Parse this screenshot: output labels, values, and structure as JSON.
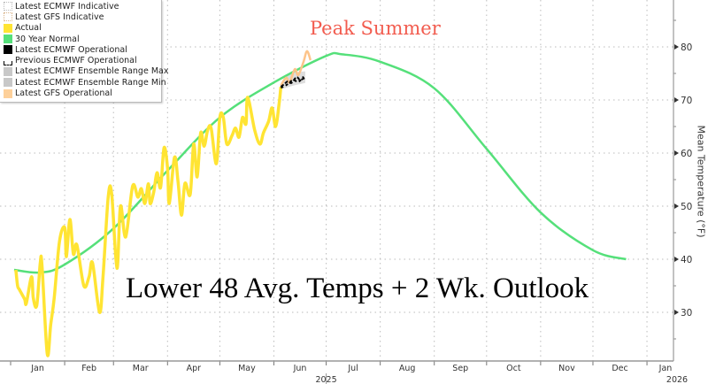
{
  "chart_data": {
    "type": "line",
    "title": "",
    "annotations": [
      "Peak Summer",
      "Lower 48 Avg. Temps + 2 Wk. Outlook"
    ],
    "xlabel": "",
    "ylabel": "Mean Temperature (°F)",
    "xlim": [
      "2025-01-01",
      "2026-01-15"
    ],
    "ylim": [
      20,
      90
    ],
    "yticks": [
      30,
      40,
      50,
      60,
      70,
      80
    ],
    "xtick_labels": [
      "Jan",
      "Feb",
      "Mar",
      "Apr",
      "May",
      "Jun",
      "Jul",
      "Aug",
      "Sep",
      "Oct",
      "Nov",
      "Dec",
      "Jan"
    ],
    "year_labels": [
      "2025",
      "2026"
    ],
    "grid": true,
    "legend_position": "top-left",
    "legend": [
      {
        "name": "Latest ECMWF Indicative",
        "color": "#d8d8d8",
        "style": "dotted"
      },
      {
        "name": "Latest GFS Indicative",
        "color": "#e6c9a6",
        "style": "dotted"
      },
      {
        "name": "Actual",
        "color": "#ffe433"
      },
      {
        "name": "30 Year Normal",
        "color": "#55e07a"
      },
      {
        "name": "Latest ECMWF Operational",
        "color": "#000000"
      },
      {
        "name": "Previous ECMWF Operational",
        "color": "#000000",
        "style": "dashed"
      },
      {
        "name": "Latest ECMWF Ensemble Range Max",
        "color": "#c8c8c8"
      },
      {
        "name": "Latest ECMWF Ensemble Range Min",
        "color": "#c8c8c8"
      },
      {
        "name": "Latest GFS Operational",
        "color": "#fdd09a"
      }
    ],
    "series": [
      {
        "name": "Actual",
        "color": "#ffe433",
        "points": [
          [
            "2025-01-04",
            38.0
          ],
          [
            "2025-01-05",
            35.0
          ],
          [
            "2025-01-06",
            34.3
          ],
          [
            "2025-01-09",
            32.5
          ],
          [
            "2025-01-10",
            31.7
          ],
          [
            "2025-01-13",
            36.7
          ],
          [
            "2025-01-14",
            32.7
          ],
          [
            "2025-01-16",
            31.3
          ],
          [
            "2025-01-18",
            39.3
          ],
          [
            "2025-01-19",
            38.8
          ],
          [
            "2025-01-22",
            22.2
          ],
          [
            "2025-01-24",
            27.7
          ],
          [
            "2025-01-26",
            32.7
          ],
          [
            "2025-01-29",
            43.3
          ],
          [
            "2025-02-01",
            46.0
          ],
          [
            "2025-02-02",
            40.5
          ],
          [
            "2025-02-04",
            47.5
          ],
          [
            "2025-02-06",
            41.0
          ],
          [
            "2025-02-08",
            42.7
          ],
          [
            "2025-02-12",
            35.0
          ],
          [
            "2025-02-15",
            36.7
          ],
          [
            "2025-02-17",
            39.3
          ],
          [
            "2025-02-21",
            30.0
          ],
          [
            "2025-02-23",
            36.7
          ],
          [
            "2025-02-26",
            51.8
          ],
          [
            "2025-02-28",
            52.2
          ],
          [
            "2025-03-03",
            38.3
          ],
          [
            "2025-03-05",
            50.0
          ],
          [
            "2025-03-08",
            44.2
          ],
          [
            "2025-03-12",
            53.8
          ],
          [
            "2025-03-15",
            51.7
          ],
          [
            "2025-03-17",
            53.3
          ],
          [
            "2025-03-19",
            50.5
          ],
          [
            "2025-03-21",
            54.2
          ],
          [
            "2025-03-22",
            50.5
          ],
          [
            "2025-03-24",
            52.5
          ],
          [
            "2025-03-26",
            56.3
          ],
          [
            "2025-03-28",
            53.5
          ],
          [
            "2025-03-30",
            61.0
          ],
          [
            "2025-04-01",
            57.2
          ],
          [
            "2025-04-02",
            50.5
          ],
          [
            "2025-04-05",
            59.2
          ],
          [
            "2025-04-07",
            54.7
          ],
          [
            "2025-04-09",
            48.3
          ],
          [
            "2025-04-11",
            54.3
          ],
          [
            "2025-04-14",
            52.2
          ],
          [
            "2025-04-16",
            61.7
          ],
          [
            "2025-04-18",
            55.5
          ],
          [
            "2025-04-20",
            63.8
          ],
          [
            "2025-04-22",
            61.3
          ],
          [
            "2025-04-24",
            64.3
          ],
          [
            "2025-04-26",
            64.7
          ],
          [
            "2025-04-29",
            58.0
          ],
          [
            "2025-05-01",
            66.7
          ],
          [
            "2025-05-03",
            66.7
          ],
          [
            "2025-05-05",
            61.7
          ],
          [
            "2025-05-08",
            63.3
          ],
          [
            "2025-05-10",
            64.7
          ],
          [
            "2025-05-12",
            63.0
          ],
          [
            "2025-05-14",
            66.7
          ],
          [
            "2025-05-16",
            65.5
          ],
          [
            "2025-05-17",
            70.5
          ],
          [
            "2025-05-21",
            64.3
          ],
          [
            "2025-05-24",
            61.7
          ],
          [
            "2025-05-26",
            63.8
          ],
          [
            "2025-05-29",
            66.0
          ],
          [
            "2025-05-31",
            68.5
          ],
          [
            "2025-06-02",
            65.0
          ],
          [
            "2025-06-04",
            69.3
          ],
          [
            "2025-06-05",
            72.5
          ]
        ]
      },
      {
        "name": "30 Year Normal",
        "color": "#55e07a",
        "points": [
          [
            "2025-01-03",
            38.0
          ],
          [
            "2025-01-18",
            37.5
          ],
          [
            "2025-02-01",
            39.0
          ],
          [
            "2025-03-01",
            45.8
          ],
          [
            "2025-04-01",
            56.7
          ],
          [
            "2025-05-01",
            66.7
          ],
          [
            "2025-06-01",
            73.3
          ],
          [
            "2025-07-01",
            78.3
          ],
          [
            "2025-07-10",
            78.6
          ],
          [
            "2025-08-01",
            77.2
          ],
          [
            "2025-09-01",
            72.2
          ],
          [
            "2025-10-01",
            60.8
          ],
          [
            "2025-11-01",
            48.8
          ],
          [
            "2025-12-01",
            41.7
          ],
          [
            "2025-12-20",
            40.0
          ]
        ]
      },
      {
        "name": "Latest ECMWF Operational",
        "color": "#000000",
        "points": [
          [
            "2025-06-05",
            72.5
          ],
          [
            "2025-06-07",
            73.0
          ],
          [
            "2025-06-09",
            73.5
          ],
          [
            "2025-06-11",
            73.2
          ],
          [
            "2025-06-14",
            74.3
          ],
          [
            "2025-06-16",
            73.8
          ],
          [
            "2025-06-19",
            74.2
          ]
        ]
      },
      {
        "name": "Previous ECMWF Operational",
        "color": "#000000",
        "points": [
          [
            "2025-06-05",
            72.3
          ],
          [
            "2025-06-07",
            72.6
          ],
          [
            "2025-06-09",
            73.0
          ],
          [
            "2025-06-12",
            73.8
          ],
          [
            "2025-06-15",
            73.4
          ],
          [
            "2025-06-18",
            74.4
          ]
        ]
      },
      {
        "name": "Latest ECMWF Ensemble Range Max",
        "color": "#c8c8c8",
        "points": [
          [
            "2025-06-05",
            73.2
          ],
          [
            "2025-06-09",
            74.6
          ],
          [
            "2025-06-13",
            75.2
          ],
          [
            "2025-06-19",
            75.4
          ]
        ]
      },
      {
        "name": "Latest ECMWF Ensemble Range Min",
        "color": "#c8c8c8",
        "points": [
          [
            "2025-06-05",
            72.0
          ],
          [
            "2025-06-09",
            72.4
          ],
          [
            "2025-06-13",
            72.8
          ],
          [
            "2025-06-19",
            73.2
          ]
        ]
      },
      {
        "name": "Latest GFS Operational",
        "color": "#fdc48a",
        "points": [
          [
            "2025-06-05",
            72.7
          ],
          [
            "2025-06-08",
            74.2
          ],
          [
            "2025-06-10",
            73.3
          ],
          [
            "2025-06-13",
            75.8
          ],
          [
            "2025-06-15",
            74.7
          ],
          [
            "2025-06-18",
            77.2
          ],
          [
            "2025-06-20",
            79.2
          ],
          [
            "2025-06-22",
            77.5
          ]
        ]
      }
    ]
  }
}
